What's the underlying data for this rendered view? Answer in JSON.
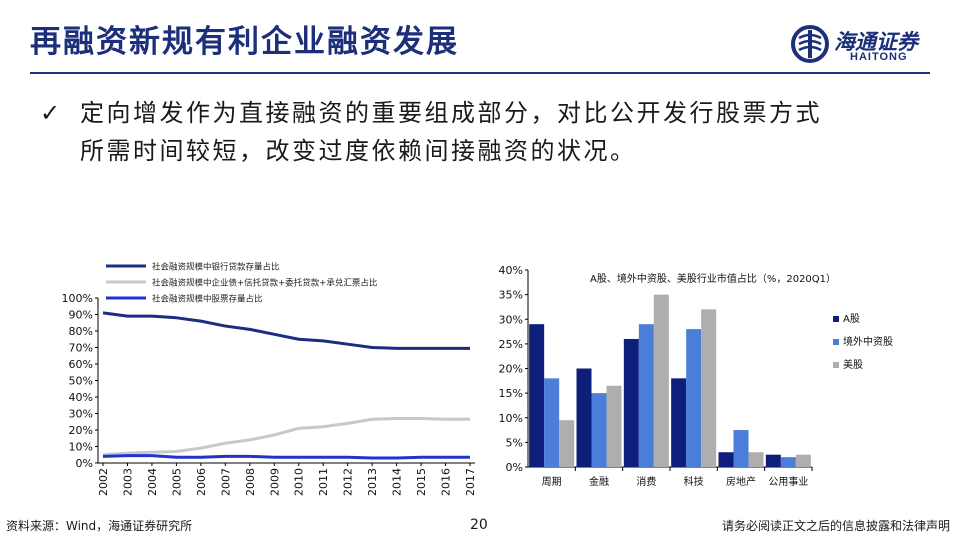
{
  "header": {
    "title": "再融资新规有利企业融资发展",
    "logo_cn": "海通证券",
    "logo_en": "HAITONG",
    "brand_color": "#1b2f7a"
  },
  "bullet": {
    "icon": "check-icon",
    "line1": "定向增发作为直接融资的重要组成部分，对比公开发行股票方式",
    "line2": "所需时间较短，改变过度依赖间接融资的状况。"
  },
  "chart_data": [
    {
      "type": "line",
      "title": "",
      "x": [
        "2002",
        "2003",
        "2004",
        "2005",
        "2006",
        "2007",
        "2008",
        "2009",
        "2010",
        "2011",
        "2012",
        "2013",
        "2014",
        "2015",
        "2016",
        "2017"
      ],
      "series": [
        {
          "name": "社会融资规模中银行贷款存量占比",
          "color": "#1b2d82",
          "values": [
            91,
            89,
            89,
            88,
            86,
            83,
            81,
            78,
            75,
            74,
            72,
            70,
            69.5,
            69.5,
            69.5,
            69.5
          ]
        },
        {
          "name": "社会融资规模中企业债+信托贷款+委托贷款+承兑汇票占比",
          "color": "#c8c8c8",
          "values": [
            5,
            6,
            6.5,
            7,
            9,
            12,
            14,
            17,
            21,
            22,
            24,
            26.5,
            27,
            27,
            26.5,
            26.5
          ]
        },
        {
          "name": "社会融资规模中股票存量占比",
          "color": "#2233cc",
          "values": [
            4,
            4.5,
            4.5,
            3.5,
            3.5,
            4,
            4,
            3.5,
            3.5,
            3.5,
            3.5,
            3,
            3,
            3.5,
            3.5,
            3.5
          ]
        }
      ],
      "y_ticks": [
        "0%",
        "10%",
        "20%",
        "30%",
        "40%",
        "50%",
        "60%",
        "70%",
        "80%",
        "90%",
        "100%"
      ],
      "ylim": [
        0,
        100
      ],
      "grid": false,
      "legend": "top"
    },
    {
      "type": "bar",
      "title": "A股、境外中资股、美股行业市值占比（%，2020Q1）",
      "categories": [
        "周期",
        "金融",
        "消费",
        "科技",
        "房地产",
        "公用事业"
      ],
      "series": [
        {
          "name": "A股",
          "color": "#0d1f7a",
          "values": [
            29,
            20,
            26,
            18,
            3,
            2.5
          ]
        },
        {
          "name": "境外中资股",
          "color": "#4a7ed8",
          "values": [
            18,
            15,
            29,
            28,
            7.5,
            2
          ]
        },
        {
          "name": "美股",
          "color": "#aeaeae",
          "values": [
            9.5,
            16.5,
            35,
            32,
            3,
            2.5
          ]
        }
      ],
      "y_ticks": [
        "0%",
        "5%",
        "10%",
        "15%",
        "20%",
        "25%",
        "30%",
        "35%",
        "40%"
      ],
      "ylim": [
        0,
        40
      ],
      "grid": false,
      "legend": "right"
    }
  ],
  "footer": {
    "source": "资料来源：Wind，海通证券研究所",
    "page": "20",
    "disclaimer": "请务必阅读正文之后的信息披露和法律声明"
  }
}
